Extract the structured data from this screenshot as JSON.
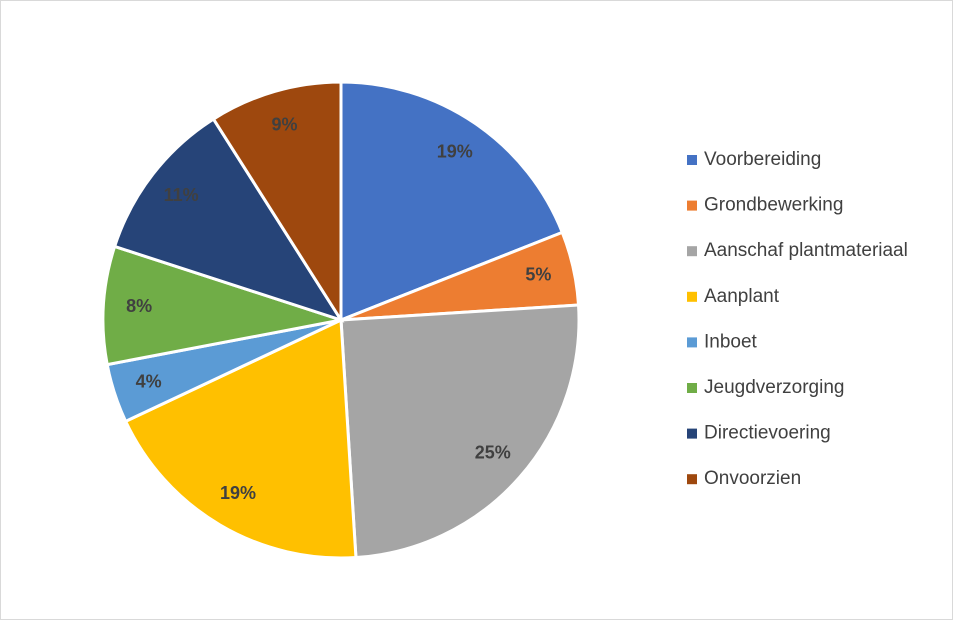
{
  "chart_data": {
    "type": "pie",
    "categories": [
      "Voorbereiding",
      "Grondbewerking",
      "Aanschaf plantmateriaal",
      "Aanplant",
      "Inboet",
      "Jeugdverzorging",
      "Directievoering",
      "Onvoorzien"
    ],
    "values": [
      19,
      5,
      25,
      19,
      4,
      8,
      11,
      9
    ],
    "value_labels": [
      "19%",
      "5%",
      "25%",
      "19%",
      "4%",
      "8%",
      "11%",
      "9%"
    ],
    "colors": [
      "#4472c4",
      "#ed7d31",
      "#a5a5a5",
      "#ffc000",
      "#5b9bd5",
      "#70ad47",
      "#264478",
      "#9e480e"
    ],
    "legend": "right"
  }
}
